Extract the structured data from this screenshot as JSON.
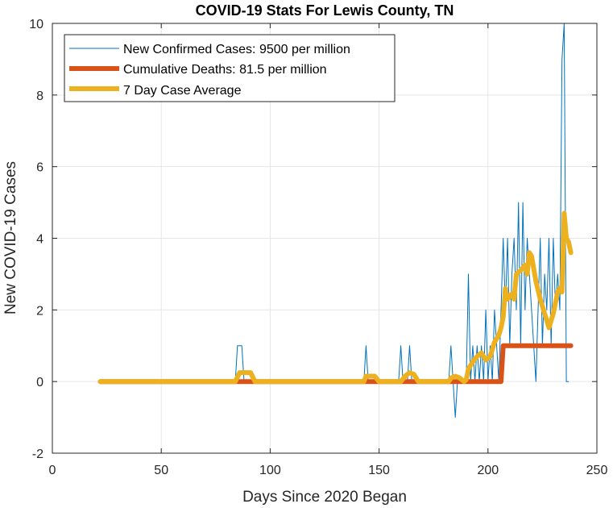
{
  "chart_data": {
    "type": "line",
    "title": "COVID-19 Stats For Lewis County, TN",
    "xlabel": "Days Since 2020 Began",
    "ylabel": "New COVID-19 Cases",
    "xlim": [
      0,
      250
    ],
    "ylim": [
      -2,
      10
    ],
    "xticks": [
      0,
      50,
      100,
      150,
      200,
      250
    ],
    "yticks": [
      -2,
      0,
      2,
      4,
      6,
      8,
      10
    ],
    "grid": true,
    "legend_position": "top-left",
    "series": [
      {
        "name": "New Confirmed Cases: 9500 per million",
        "color": "#0072BD",
        "points": [
          [
            22,
            0
          ],
          [
            84,
            0
          ],
          [
            85,
            1
          ],
          [
            87,
            1
          ],
          [
            88,
            0
          ],
          [
            143,
            0
          ],
          [
            144,
            1
          ],
          [
            145,
            0
          ],
          [
            159,
            0
          ],
          [
            160,
            1
          ],
          [
            161,
            0
          ],
          [
            163,
            0
          ],
          [
            164,
            1
          ],
          [
            165,
            0
          ],
          [
            182,
            0
          ],
          [
            183,
            1
          ],
          [
            184,
            0
          ],
          [
            185,
            -1
          ],
          [
            186,
            0
          ],
          [
            189,
            0
          ],
          [
            190,
            0
          ],
          [
            191,
            3
          ],
          [
            192,
            0
          ],
          [
            193,
            1
          ],
          [
            194,
            0
          ],
          [
            195,
            1
          ],
          [
            196,
            0
          ],
          [
            197,
            1
          ],
          [
            198,
            0
          ],
          [
            199,
            2
          ],
          [
            200,
            0
          ],
          [
            201,
            1
          ],
          [
            202,
            0
          ],
          [
            203,
            2
          ],
          [
            204,
            1
          ],
          [
            205,
            0
          ],
          [
            206,
            2
          ],
          [
            207,
            4
          ],
          [
            208,
            2
          ],
          [
            209,
            4
          ],
          [
            210,
            1
          ],
          [
            211,
            3
          ],
          [
            212,
            4
          ],
          [
            213,
            2
          ],
          [
            214,
            5
          ],
          [
            215,
            1
          ],
          [
            216,
            5
          ],
          [
            217,
            2
          ],
          [
            218,
            4
          ],
          [
            219,
            3
          ],
          [
            220,
            2
          ],
          [
            221,
            1
          ],
          [
            222,
            0
          ],
          [
            223,
            2
          ],
          [
            224,
            4
          ],
          [
            225,
            1
          ],
          [
            226,
            3
          ],
          [
            227,
            2
          ],
          [
            228,
            4
          ],
          [
            229,
            1
          ],
          [
            230,
            4
          ],
          [
            231,
            2
          ],
          [
            232,
            3
          ],
          [
            233,
            2
          ],
          [
            234,
            9
          ],
          [
            235,
            10
          ],
          [
            236,
            0
          ],
          [
            237,
            0
          ]
        ]
      },
      {
        "name": "Cumulative Deaths: 81.5 per million",
        "color": "#D95319",
        "points": [
          [
            22,
            0
          ],
          [
            206,
            0
          ],
          [
            207,
            1
          ],
          [
            238,
            1
          ]
        ]
      },
      {
        "name": "7 Day Case Average",
        "color": "#EDB120",
        "points": [
          [
            22,
            0
          ],
          [
            84,
            0
          ],
          [
            86,
            0.25
          ],
          [
            91,
            0.25
          ],
          [
            93,
            0
          ],
          [
            143,
            0
          ],
          [
            144,
            0.15
          ],
          [
            148,
            0.15
          ],
          [
            150,
            0
          ],
          [
            160,
            0
          ],
          [
            162,
            0.15
          ],
          [
            164,
            0.25
          ],
          [
            166,
            0.2
          ],
          [
            168,
            0
          ],
          [
            182,
            0
          ],
          [
            183,
            0.1
          ],
          [
            185,
            0.15
          ],
          [
            187,
            0.1
          ],
          [
            189,
            0
          ],
          [
            190,
            0.05
          ],
          [
            191,
            0.35
          ],
          [
            193,
            0.55
          ],
          [
            195,
            0.7
          ],
          [
            197,
            0.8
          ],
          [
            199,
            0.6
          ],
          [
            201,
            0.7
          ],
          [
            203,
            1.1
          ],
          [
            205,
            1.3
          ],
          [
            206,
            1.5
          ],
          [
            207,
            1.8
          ],
          [
            208,
            2.6
          ],
          [
            209,
            2.3
          ],
          [
            211,
            2.45
          ],
          [
            212,
            2.3
          ],
          [
            213,
            3.0
          ],
          [
            215,
            3.1
          ],
          [
            217,
            3.25
          ],
          [
            218,
            3.0
          ],
          [
            219,
            3.6
          ],
          [
            220,
            3.5
          ],
          [
            222,
            2.8
          ],
          [
            224,
            2.3
          ],
          [
            226,
            1.9
          ],
          [
            228,
            1.5
          ],
          [
            230,
            1.9
          ],
          [
            232,
            2.5
          ],
          [
            233,
            2.6
          ],
          [
            234,
            2.5
          ],
          [
            235,
            4.7
          ],
          [
            236,
            4.0
          ],
          [
            237,
            3.9
          ],
          [
            238,
            3.6
          ]
        ]
      }
    ]
  }
}
